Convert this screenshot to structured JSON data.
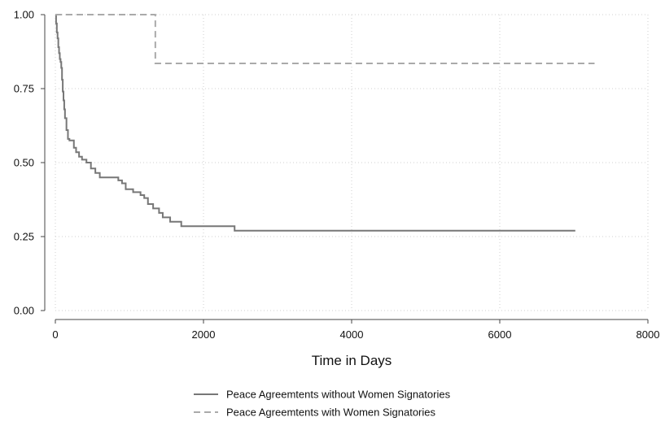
{
  "chart_data": {
    "type": "line",
    "title": "",
    "xlabel": "Time in Days",
    "ylabel": "",
    "xlim": [
      0,
      8000
    ],
    "ylim": [
      0,
      1
    ],
    "xticks": [
      0,
      2000,
      4000,
      6000,
      8000
    ],
    "yticks": [
      0.0,
      0.25,
      0.5,
      0.75,
      1.0
    ],
    "xtick_labels": [
      "0",
      "2000",
      "4000",
      "6000",
      "8000"
    ],
    "ytick_labels": [
      "0.00",
      "0.25",
      "0.50",
      "0.75",
      "1.00"
    ],
    "grid": true,
    "legend_position": "bottom",
    "series": [
      {
        "name": "Peace Agreemtents without Women Signatories",
        "style": "solid",
        "color": "#777777",
        "x": [
          0,
          10,
          20,
          30,
          40,
          50,
          60,
          70,
          80,
          90,
          100,
          110,
          120,
          130,
          150,
          170,
          190,
          250,
          280,
          320,
          360,
          420,
          480,
          540,
          600,
          850,
          900,
          950,
          1050,
          1150,
          1200,
          1250,
          1320,
          1400,
          1450,
          1550,
          1700,
          2420,
          7020
        ],
        "y": [
          1.0,
          0.97,
          0.94,
          0.92,
          0.89,
          0.87,
          0.85,
          0.84,
          0.82,
          0.78,
          0.74,
          0.71,
          0.68,
          0.65,
          0.61,
          0.58,
          0.575,
          0.55,
          0.535,
          0.52,
          0.51,
          0.5,
          0.48,
          0.465,
          0.45,
          0.44,
          0.43,
          0.41,
          0.4,
          0.39,
          0.38,
          0.36,
          0.345,
          0.33,
          0.315,
          0.3,
          0.285,
          0.27,
          0.27
        ]
      },
      {
        "name": "Peace Agreemtents with Women Signatories",
        "style": "dashed",
        "color": "#aaaaaa",
        "x": [
          0,
          1350,
          7280
        ],
        "y": [
          1.0,
          0.835,
          0.835
        ]
      }
    ]
  }
}
